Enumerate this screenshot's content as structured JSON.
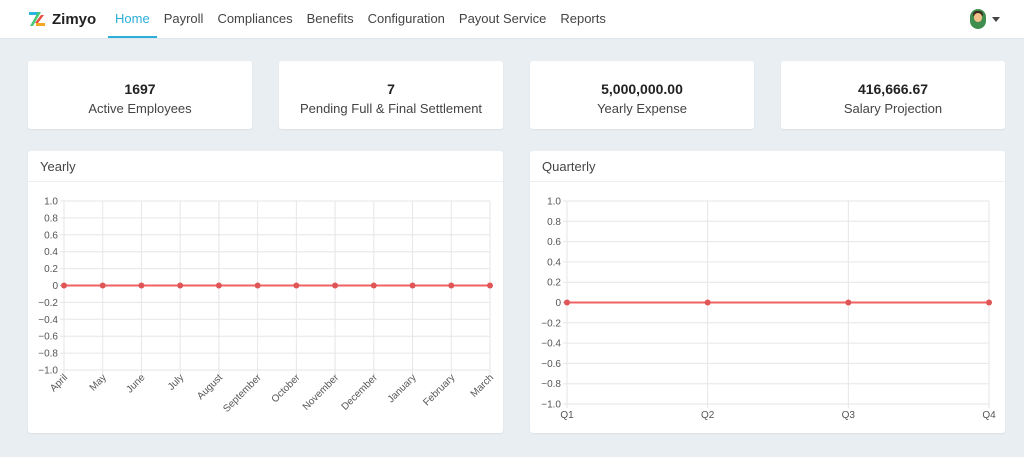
{
  "app": {
    "name": "Zimyo"
  },
  "nav": {
    "items": [
      {
        "label": "Home",
        "active": true
      },
      {
        "label": "Payroll",
        "active": false
      },
      {
        "label": "Compliances",
        "active": false
      },
      {
        "label": "Benefits",
        "active": false
      },
      {
        "label": "Configuration",
        "active": false
      },
      {
        "label": "Payout Service",
        "active": false
      },
      {
        "label": "Reports",
        "active": false
      }
    ]
  },
  "user": {
    "avatar_icon": "user-avatar-icon"
  },
  "stats": [
    {
      "value": "1697",
      "label": "Active Employees"
    },
    {
      "value": "7",
      "label": "Pending Full & Final Settlement"
    },
    {
      "value": "5,000,000.00",
      "label": "Yearly Expense"
    },
    {
      "value": "416,666.67",
      "label": "Salary Projection"
    }
  ],
  "panels": {
    "yearly": {
      "title": "Yearly"
    },
    "quarterly": {
      "title": "Quarterly"
    }
  },
  "colors": {
    "accent": "#2bafd9",
    "series_line": "#f06262",
    "series_point": "#e05555",
    "grid": "#e6e6e6",
    "zero_line": "#b5b5b5"
  },
  "chart_data": [
    {
      "type": "line",
      "title": "",
      "categories": [
        "April",
        "May",
        "June",
        "July",
        "August",
        "September",
        "October",
        "November",
        "December",
        "January",
        "February",
        "March"
      ],
      "series": [
        {
          "values": [
            0,
            0,
            0,
            0,
            0,
            0,
            0,
            0,
            0,
            0,
            0,
            0
          ]
        }
      ],
      "ylim": [
        -1.0,
        1.0
      ],
      "yticks": [
        "1.0",
        "0.8",
        "0.6",
        "0.4",
        "0.2",
        "0",
        "−0.2",
        "−0.4",
        "−0.6",
        "−0.8",
        "−1.0"
      ],
      "grid": true
    },
    {
      "type": "line",
      "title": "",
      "categories": [
        "Q1",
        "Q2",
        "Q3",
        "Q4"
      ],
      "series": [
        {
          "values": [
            0,
            0,
            0,
            0
          ]
        }
      ],
      "ylim": [
        -1.0,
        1.0
      ],
      "yticks": [
        "1.0",
        "0.8",
        "0.6",
        "0.4",
        "0.2",
        "0",
        "−0.2",
        "−0.4",
        "−0.6",
        "−0.8",
        "−1.0"
      ],
      "grid": true
    }
  ]
}
